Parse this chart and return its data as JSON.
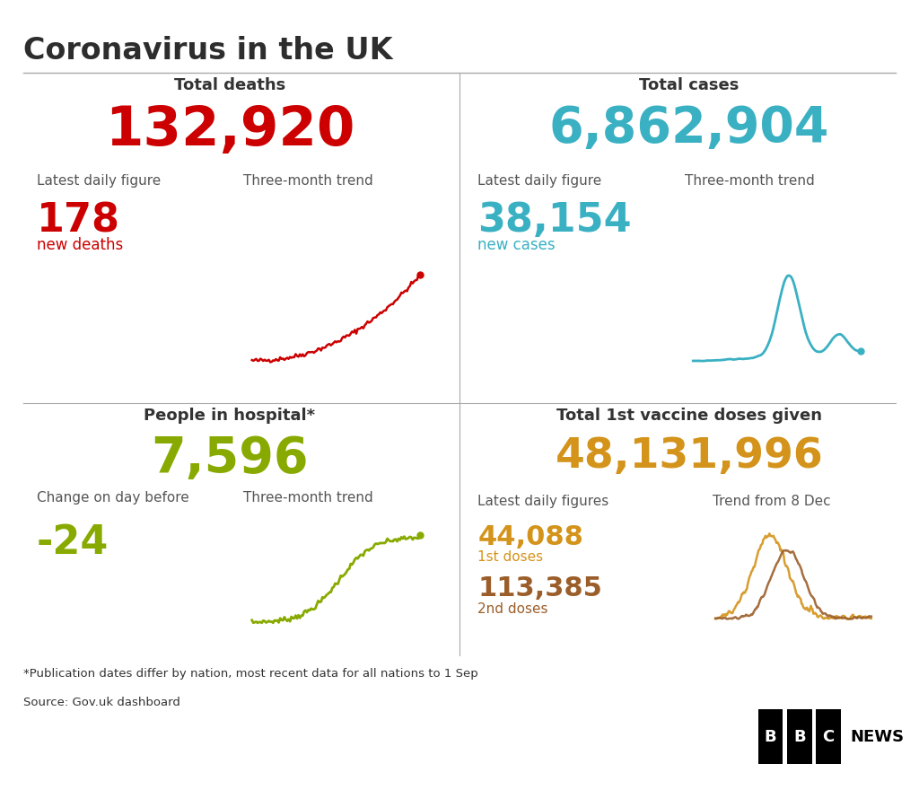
{
  "title": "Coronavirus in the UK",
  "bg_color": "#ffffff",
  "title_color": "#2d2d2d",
  "divider_color": "#aaaaaa",
  "total_deaths_label": "Total deaths",
  "total_deaths_value": "132,920",
  "total_deaths_color": "#cc0000",
  "deaths_daily_label": "Latest daily figure",
  "deaths_trend_label": "Three-month trend",
  "deaths_daily_value": "178",
  "deaths_daily_sub": "new deaths",
  "total_cases_label": "Total cases",
  "total_cases_value": "6,862,904",
  "total_cases_color": "#3ab0c3",
  "cases_daily_label": "Latest daily figure",
  "cases_trend_label": "Three-month trend",
  "cases_daily_value": "38,154",
  "cases_daily_sub": "new cases",
  "hospital_label": "People in hospital*",
  "hospital_value": "7,596",
  "hospital_color": "#88aa00",
  "hospital_change_label": "Change on day before",
  "hospital_trend_label": "Three-month trend",
  "hospital_change_value": "-24",
  "vaccine_label": "Total 1st vaccine doses given",
  "vaccine_value": "48,131,996",
  "vaccine_color": "#d4931a",
  "vaccine_daily_label": "Latest daily figures",
  "vaccine_trend_label": "Trend from 8 Dec",
  "vaccine_dose1_value": "44,088",
  "vaccine_dose1_sub": "1st doses",
  "vaccine_dose1_color": "#d4931a",
  "vaccine_dose2_value": "113,385",
  "vaccine_dose2_sub": "2nd doses",
  "vaccine_dose2_color": "#9b5e2a",
  "footnote": "*Publication dates differ by nation, most recent data for all nations to 1 Sep",
  "source": "Source: Gov.uk dashboard",
  "label_color": "#555555",
  "text_color": "#333333"
}
